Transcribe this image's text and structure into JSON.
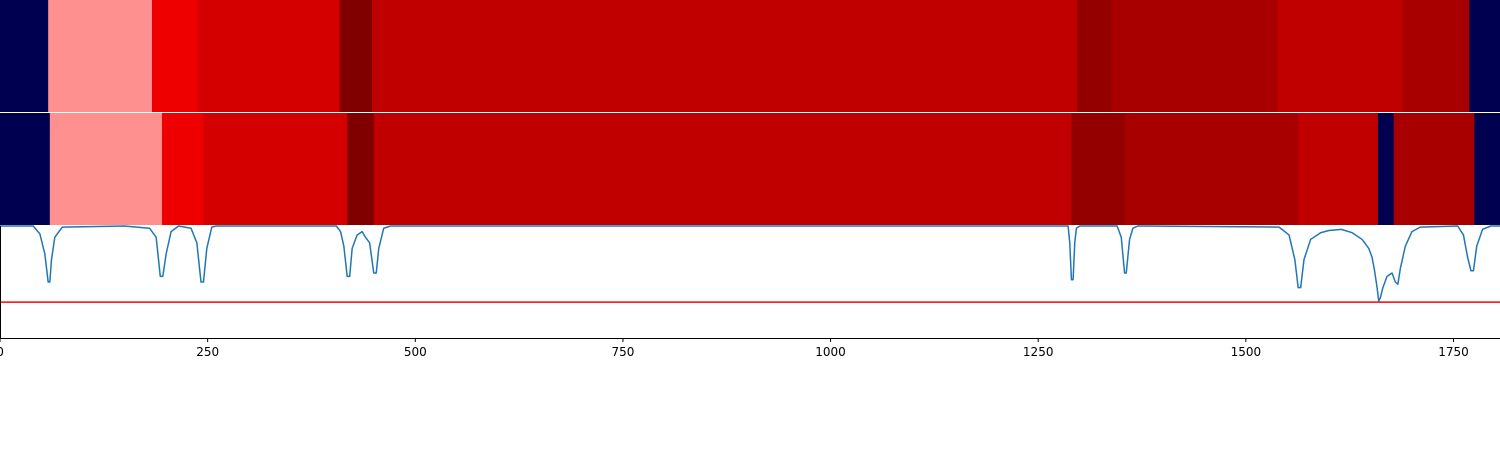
{
  "chart_data": {
    "type": "heatmap",
    "x_range": [
      0,
      1806
    ],
    "x_ticks": [
      0,
      250,
      500,
      750,
      1000,
      1250,
      1500,
      1750
    ],
    "x_tick_labels": [
      "0",
      "250",
      "500",
      "750",
      "1000",
      "1250",
      "1500",
      "1750"
    ],
    "segment_tracks": [
      {
        "segments": [
          {
            "start": 0,
            "end": 58,
            "color": "#000050"
          },
          {
            "start": 58,
            "end": 183,
            "color": "#ff9090"
          },
          {
            "start": 183,
            "end": 238,
            "color": "#ee0000"
          },
          {
            "start": 238,
            "end": 409,
            "color": "#d40000"
          },
          {
            "start": 409,
            "end": 448,
            "color": "#800000"
          },
          {
            "start": 448,
            "end": 1297,
            "color": "#c00000"
          },
          {
            "start": 1297,
            "end": 1338,
            "color": "#940000"
          },
          {
            "start": 1338,
            "end": 1538,
            "color": "#a80000"
          },
          {
            "start": 1538,
            "end": 1689,
            "color": "#c00000"
          },
          {
            "start": 1689,
            "end": 1769,
            "color": "#a80000"
          },
          {
            "start": 1769,
            "end": 1806,
            "color": "#000050"
          }
        ]
      },
      {
        "segments": [
          {
            "start": 0,
            "end": 60,
            "color": "#000050"
          },
          {
            "start": 60,
            "end": 195,
            "color": "#ff9090"
          },
          {
            "start": 195,
            "end": 245,
            "color": "#ee0000"
          },
          {
            "start": 245,
            "end": 418,
            "color": "#d40000"
          },
          {
            "start": 418,
            "end": 450,
            "color": "#800000"
          },
          {
            "start": 450,
            "end": 1290,
            "color": "#c00000"
          },
          {
            "start": 1290,
            "end": 1355,
            "color": "#940000"
          },
          {
            "start": 1355,
            "end": 1563,
            "color": "#a80000"
          },
          {
            "start": 1563,
            "end": 1659,
            "color": "#c00000"
          },
          {
            "start": 1659,
            "end": 1678,
            "color": "#000050"
          },
          {
            "start": 1678,
            "end": 1775,
            "color": "#a80000"
          },
          {
            "start": 1775,
            "end": 1806,
            "color": "#000050"
          }
        ]
      }
    ],
    "line_series": {
      "color": "#1f77b4",
      "ylim": [
        0,
        1
      ],
      "threshold": 0.32,
      "threshold_color": "#ff0000",
      "points": [
        [
          0,
          1.0
        ],
        [
          40,
          1.0
        ],
        [
          48,
          0.93
        ],
        [
          54,
          0.75
        ],
        [
          58,
          0.5
        ],
        [
          60,
          0.5
        ],
        [
          62,
          0.7
        ],
        [
          66,
          0.9
        ],
        [
          75,
          0.99
        ],
        [
          150,
          1.0
        ],
        [
          180,
          0.98
        ],
        [
          188,
          0.9
        ],
        [
          193,
          0.55
        ],
        [
          196,
          0.55
        ],
        [
          200,
          0.75
        ],
        [
          206,
          0.95
        ],
        [
          215,
          1.0
        ],
        [
          230,
          0.98
        ],
        [
          237,
          0.85
        ],
        [
          242,
          0.5
        ],
        [
          245,
          0.5
        ],
        [
          249,
          0.8
        ],
        [
          255,
          0.99
        ],
        [
          260,
          1.0
        ],
        [
          405,
          1.0
        ],
        [
          410,
          0.95
        ],
        [
          414,
          0.82
        ],
        [
          418,
          0.55
        ],
        [
          421,
          0.55
        ],
        [
          424,
          0.8
        ],
        [
          430,
          0.92
        ],
        [
          436,
          0.95
        ],
        [
          440,
          0.9
        ],
        [
          445,
          0.85
        ],
        [
          450,
          0.58
        ],
        [
          453,
          0.58
        ],
        [
          456,
          0.8
        ],
        [
          462,
          0.98
        ],
        [
          470,
          1.0
        ],
        [
          495,
          1.0
        ],
        [
          1286,
          1.0
        ],
        [
          1288,
          0.85
        ],
        [
          1290,
          0.52
        ],
        [
          1292,
          0.52
        ],
        [
          1294,
          0.85
        ],
        [
          1296,
          0.98
        ],
        [
          1300,
          1.0
        ],
        [
          1345,
          1.0
        ],
        [
          1350,
          0.9
        ],
        [
          1354,
          0.58
        ],
        [
          1356,
          0.58
        ],
        [
          1360,
          0.88
        ],
        [
          1364,
          0.98
        ],
        [
          1370,
          1.0
        ],
        [
          1540,
          0.99
        ],
        [
          1552,
          0.92
        ],
        [
          1559,
          0.7
        ],
        [
          1563,
          0.45
        ],
        [
          1566,
          0.45
        ],
        [
          1570,
          0.7
        ],
        [
          1578,
          0.88
        ],
        [
          1590,
          0.94
        ],
        [
          1600,
          0.96
        ],
        [
          1615,
          0.97
        ],
        [
          1628,
          0.94
        ],
        [
          1640,
          0.88
        ],
        [
          1648,
          0.8
        ],
        [
          1652,
          0.72
        ],
        [
          1655,
          0.6
        ],
        [
          1658,
          0.45
        ],
        [
          1660,
          0.33
        ],
        [
          1662,
          0.36
        ],
        [
          1665,
          0.45
        ],
        [
          1670,
          0.55
        ],
        [
          1676,
          0.58
        ],
        [
          1680,
          0.5
        ],
        [
          1683,
          0.48
        ],
        [
          1686,
          0.62
        ],
        [
          1692,
          0.82
        ],
        [
          1700,
          0.95
        ],
        [
          1710,
          0.99
        ],
        [
          1755,
          1.0
        ],
        [
          1762,
          0.92
        ],
        [
          1767,
          0.72
        ],
        [
          1771,
          0.6
        ],
        [
          1774,
          0.6
        ],
        [
          1778,
          0.82
        ],
        [
          1785,
          0.97
        ],
        [
          1795,
          1.0
        ],
        [
          1806,
          1.0
        ]
      ]
    }
  }
}
